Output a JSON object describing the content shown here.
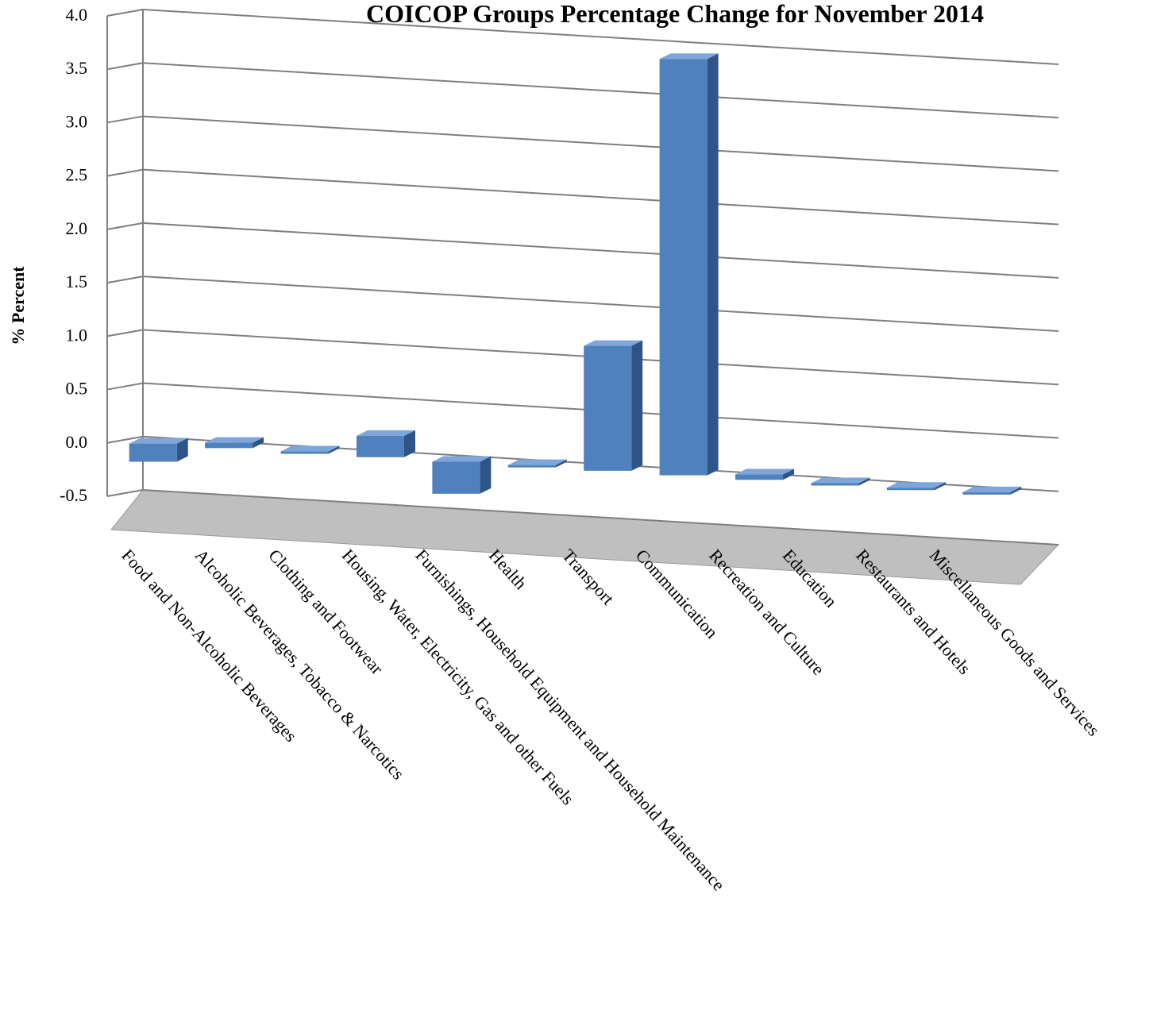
{
  "chart_data": {
    "type": "bar",
    "title": "COICOP  Groups Percentage Change for  November 2014",
    "xlabel": "",
    "ylabel": "% Percent",
    "ylim": [
      -0.5,
      4.0
    ],
    "yticks": [
      "4.0",
      "3.5",
      "3.0",
      "2.5",
      "2.0",
      "1.5",
      "1.0",
      "0.5",
      "0.0",
      "-0.5"
    ],
    "grid": true,
    "legend": "none",
    "categories": [
      "Food and Non-Alcoholic Beverages",
      "Alcoholic Beverages, Tobacco & Narcotics",
      "Clothing and Footwear",
      "Housing, Water, Electricity, Gas and other Fuels",
      "Furnishings, Household Equipment and Household Maintenance",
      "Health",
      "Transport",
      "Communication",
      "Recreation and Culture",
      "Education",
      "Restaurants and Hotels",
      "Miscellaneous Goods and Services"
    ],
    "values": [
      -0.17,
      0.05,
      0.0,
      0.2,
      -0.3,
      0.0,
      1.17,
      3.9,
      0.05,
      0.0,
      0.0,
      0.0
    ],
    "colors": {
      "bar_front": "#4F81BD",
      "bar_side": "#2F5488",
      "bar_top": "#7EA6DA",
      "grid": "#7f7f7f",
      "floor": "#bfbfbf"
    }
  }
}
